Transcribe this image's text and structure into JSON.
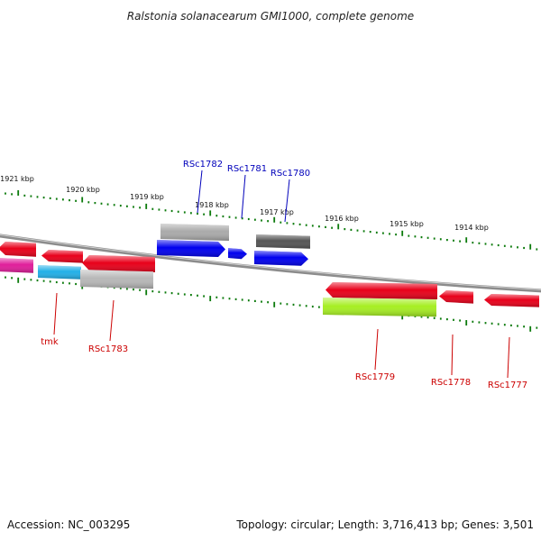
{
  "title": "Ralstonia solanacearum GMI1000, complete genome",
  "footer": {
    "accession": "Accession: NC_003295",
    "summary": "Topology: circular; Length: 3,716,413 bp; Genes: 3,501"
  },
  "colors": {
    "backbone": "#8c8c8c",
    "tick": "#0b7a0b",
    "upper_label": "#0000bb",
    "lower_label": "#cc0000"
  },
  "scale_labels": [
    "1921 kbp",
    "1920 kbp",
    "1919 kbp",
    "1918 kbp",
    "1917 kbp",
    "1916 kbp",
    "1915 kbp",
    "1914 kbp"
  ],
  "genes": [
    {
      "label": "",
      "color": "#e8001a",
      "row": "upper",
      "strand": "reverse"
    },
    {
      "label": "",
      "color": "#e8001a",
      "row": "upper",
      "strand": "reverse"
    },
    {
      "label": "",
      "color": "#e8001a",
      "row": "upper",
      "strand": "reverse"
    },
    {
      "label": "",
      "color": "#aaaaaa",
      "row": "upper",
      "strand": "none"
    },
    {
      "label": "",
      "color": "#0000ee",
      "row": "upper",
      "strand": "forward"
    },
    {
      "label": "",
      "color": "#0000ee",
      "row": "upper",
      "strand": "forward"
    },
    {
      "label": "",
      "color": "#555555",
      "row": "upper",
      "strand": "none"
    },
    {
      "label": "",
      "color": "#0000ee",
      "row": "upper",
      "strand": "forward"
    },
    {
      "label": "",
      "color": "#e01e9a",
      "row": "lower",
      "strand": "none"
    },
    {
      "label": "",
      "color": "#22b0e8",
      "row": "lower",
      "strand": "none"
    },
    {
      "label": "",
      "color": "#b8b8b8",
      "row": "lower",
      "strand": "none"
    },
    {
      "label": "",
      "color": "#e8001a",
      "row": "lower",
      "strand": "reverse"
    },
    {
      "label": "",
      "color": "#e8001a",
      "row": "lower",
      "strand": "reverse"
    },
    {
      "label": "",
      "color": "#e8001a",
      "row": "lower",
      "strand": "reverse"
    },
    {
      "label": "",
      "color": "#a6ee22",
      "row": "lower",
      "strand": "none"
    }
  ],
  "gene_labels": [
    {
      "text": "RSc1782",
      "group": "upper"
    },
    {
      "text": "RSc1781",
      "group": "upper"
    },
    {
      "text": "RSc1780",
      "group": "upper"
    },
    {
      "text": "tmk",
      "group": "lower"
    },
    {
      "text": "RSc1783",
      "group": "lower"
    },
    {
      "text": "RSc1779",
      "group": "lower"
    },
    {
      "text": "RSc1778",
      "group": "lower"
    },
    {
      "text": "RSc1777",
      "group": "lower"
    }
  ]
}
